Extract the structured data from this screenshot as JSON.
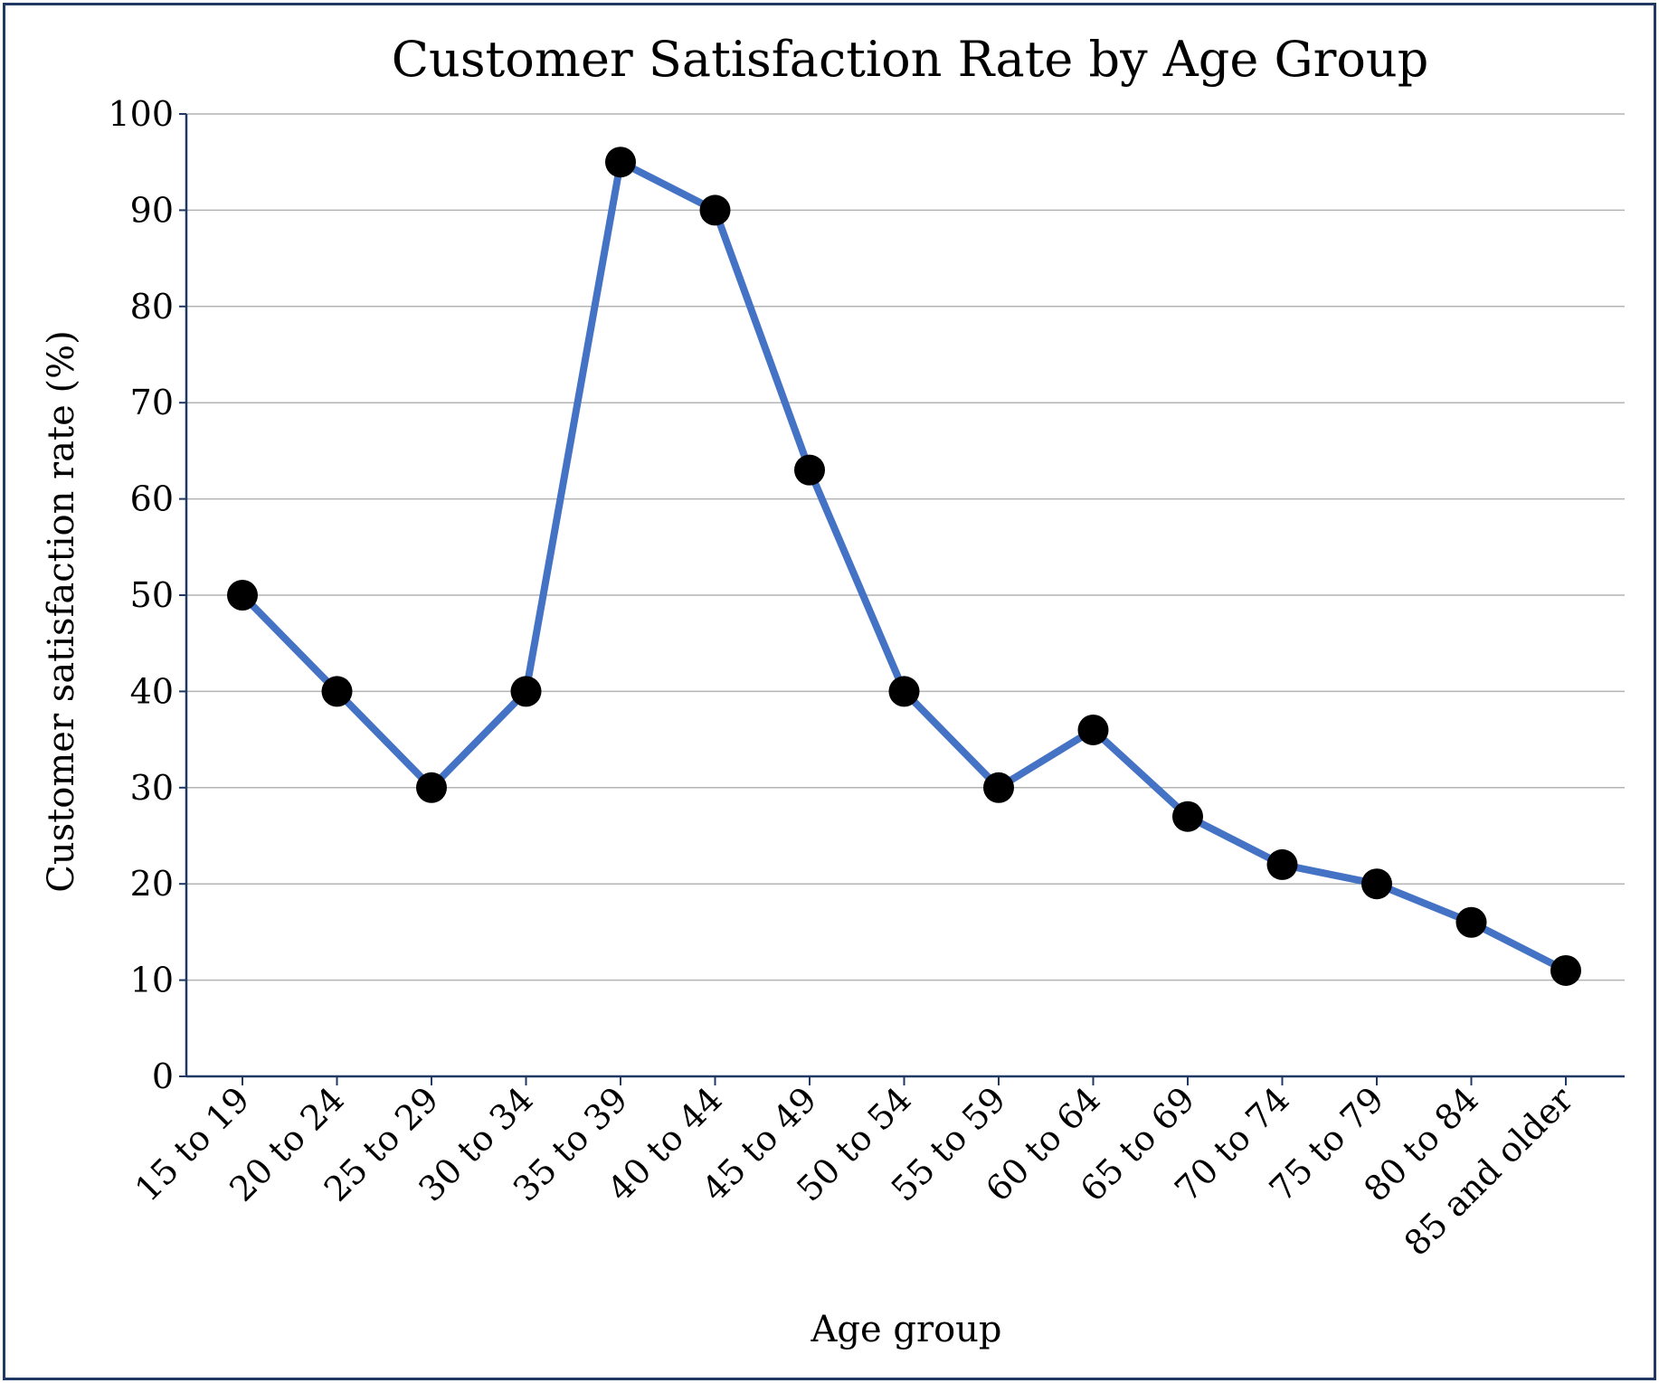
{
  "chart_data": {
    "type": "line",
    "title": "Customer Satisfaction Rate by Age Group",
    "xlabel": "Age group",
    "ylabel": "Customer satisfaction rate (%)",
    "categories": [
      "15 to 19",
      "20 to 24",
      "25 to 29",
      "30 to 34",
      "35 to 39",
      "40 to 44",
      "45 to 49",
      "50 to 54",
      "55 to 59",
      "60 to 64",
      "65 to 69",
      "70 to 74",
      "75 to 79",
      "80 to 84",
      "85 and older"
    ],
    "values": [
      50,
      40,
      30,
      40,
      95,
      90,
      63,
      40,
      30,
      36,
      27,
      22,
      20,
      16,
      11
    ],
    "ylim": [
      0,
      100
    ],
    "yticks": [
      0,
      10,
      20,
      30,
      40,
      50,
      60,
      70,
      80,
      90,
      100
    ],
    "grid": true,
    "colors": {
      "line": "#4472c4",
      "marker": "#000000",
      "grid": "#b4b4b4",
      "axis": "#1f3864",
      "border": "#1f3864"
    }
  }
}
